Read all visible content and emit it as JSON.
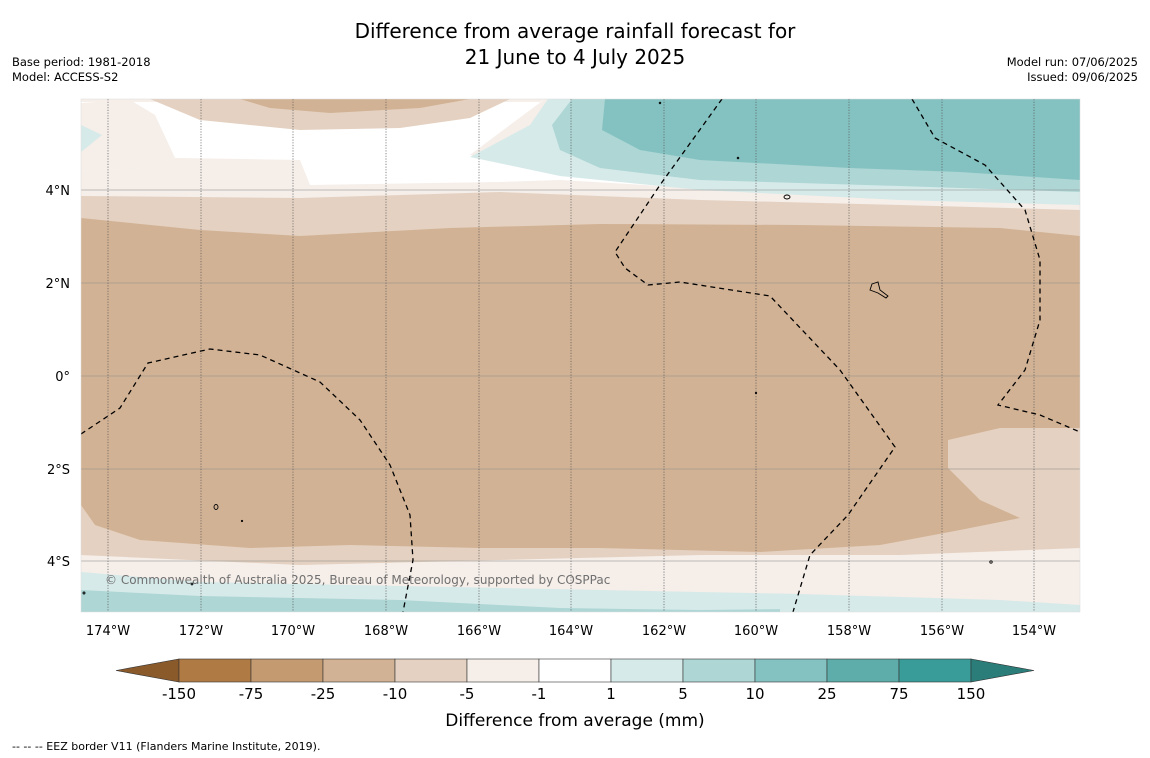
{
  "title_line1": "Difference from average rainfall forecast for",
  "title_line2": "21 June to 4 July 2025",
  "base_period": "Base period: 1981-2018",
  "model": "Model: ACCESS-S2",
  "model_run": "Model run: 07/06/2025",
  "issued": "Issued: 09/06/2025",
  "copyright": "© Commonwealth of Australia 2025, Bureau of Meteorology, supported by COSPPac",
  "footer": "--  --  -- EEZ border V11 (Flanders Marine Institute, 2019).",
  "colorbar": {
    "label": "Difference from average (mm)",
    "ticks": [
      "-150",
      "-75",
      "-25",
      "-10",
      "-5",
      "-1",
      "1",
      "5",
      "10",
      "25",
      "75",
      "150"
    ],
    "colors": [
      "#8b5a2b",
      "#b07a45",
      "#c49a70",
      "#d2b294",
      "#e4d1c1",
      "#f5eee9",
      "#ffffff",
      "#d6eae9",
      "#add6d5",
      "#84c2c1",
      "#5eadab",
      "#3a9c98",
      "#2a7d79"
    ]
  },
  "map": {
    "lat_labels": [
      "4°N",
      "2°N",
      "0°",
      "2°S",
      "4°S"
    ],
    "lon_labels": [
      "174°W",
      "172°W",
      "170°W",
      "168°W",
      "166°W",
      "164°W",
      "162°W",
      "160°W",
      "158°W",
      "156°W",
      "154°W"
    ]
  }
}
